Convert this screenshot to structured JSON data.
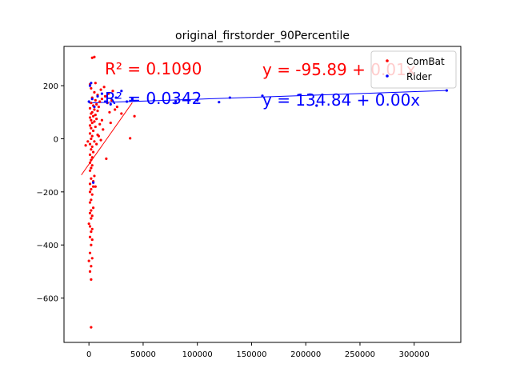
{
  "chart_data": {
    "type": "scatter",
    "title": "original_firstorder_90Percentile",
    "xlabel": "",
    "ylabel": "",
    "xlim": [
      -23000,
      343000
    ],
    "ylim": [
      -767,
      348
    ],
    "x_ticks": [
      0,
      50000,
      100000,
      150000,
      200000,
      250000,
      300000
    ],
    "x_tick_labels": [
      "0",
      "50000",
      "100000",
      "150000",
      "200000",
      "250000",
      "300000"
    ],
    "y_ticks": [
      -600,
      -400,
      -200,
      0,
      200
    ],
    "y_tick_labels": [
      "−600",
      "−400",
      "−200",
      "0",
      "200"
    ],
    "grid": false,
    "legend_position": "top-right",
    "series": [
      {
        "name": "ComBat",
        "color": "#ff0000",
        "points": [
          [
            -3000,
            -25
          ],
          [
            -1000,
            -10
          ],
          [
            2000,
            -710
          ],
          [
            2000,
            -530
          ],
          [
            1000,
            -500
          ],
          [
            2000,
            -480
          ],
          [
            0,
            -460
          ],
          [
            3000,
            -450
          ],
          [
            1000,
            -430
          ],
          [
            2000,
            -400
          ],
          [
            3000,
            -380
          ],
          [
            1000,
            -370
          ],
          [
            2000,
            -350
          ],
          [
            3000,
            -340
          ],
          [
            1000,
            -330
          ],
          [
            0,
            -320
          ],
          [
            2000,
            -300
          ],
          [
            3000,
            -290
          ],
          [
            1000,
            -280
          ],
          [
            2000,
            -270
          ],
          [
            4000,
            -260
          ],
          [
            1000,
            -240
          ],
          [
            2000,
            -230
          ],
          [
            3000,
            -210
          ],
          [
            1000,
            -200
          ],
          [
            2000,
            -190
          ],
          [
            4000,
            -180
          ],
          [
            1000,
            -170
          ],
          [
            2000,
            -150
          ],
          [
            5000,
            -140
          ],
          [
            1000,
            -120
          ],
          [
            2000,
            -110
          ],
          [
            3000,
            -100
          ],
          [
            1000,
            -90
          ],
          [
            2000,
            -80
          ],
          [
            3000,
            -70
          ],
          [
            1000,
            -60
          ],
          [
            4000,
            -50
          ],
          [
            2000,
            -40
          ],
          [
            3000,
            -30
          ],
          [
            1000,
            -20
          ],
          [
            5000,
            -10
          ],
          [
            2000,
            0
          ],
          [
            3000,
            10
          ],
          [
            1000,
            20
          ],
          [
            4000,
            30
          ],
          [
            2000,
            40
          ],
          [
            6000,
            45
          ],
          [
            1000,
            50
          ],
          [
            3000,
            60
          ],
          [
            5000,
            65
          ],
          [
            2000,
            70
          ],
          [
            7000,
            75
          ],
          [
            1000,
            80
          ],
          [
            4000,
            85
          ],
          [
            6000,
            90
          ],
          [
            2000,
            95
          ],
          [
            3000,
            100
          ],
          [
            8000,
            105
          ],
          [
            5000,
            110
          ],
          [
            1000,
            115
          ],
          [
            9000,
            120
          ],
          [
            4000,
            125
          ],
          [
            7000,
            130
          ],
          [
            2000,
            135
          ],
          [
            10000,
            140
          ],
          [
            6000,
            145
          ],
          [
            12000,
            150
          ],
          [
            3000,
            155
          ],
          [
            15000,
            160
          ],
          [
            8000,
            165
          ],
          [
            18000,
            170
          ],
          [
            5000,
            175
          ],
          [
            22000,
            180
          ],
          [
            11000,
            185
          ],
          [
            2000,
            190
          ],
          [
            14000,
            195
          ],
          [
            1000,
            205
          ],
          [
            6000,
            210
          ],
          [
            3000,
            305
          ],
          [
            5000,
            308
          ],
          [
            16000,
            -75
          ],
          [
            38000,
            2
          ],
          [
            42000,
            85
          ],
          [
            26000,
            120
          ],
          [
            30000,
            95
          ],
          [
            20000,
            60
          ],
          [
            24000,
            110
          ],
          [
            9000,
            10
          ],
          [
            13000,
            35
          ],
          [
            17000,
            135
          ],
          [
            21000,
            145
          ],
          [
            7000,
            -20
          ],
          [
            11000,
            -5
          ],
          [
            4000,
            -160
          ],
          [
            6000,
            -180
          ],
          [
            8000,
            15
          ],
          [
            12000,
            70
          ],
          [
            10000,
            55
          ],
          [
            19000,
            100
          ]
        ]
      },
      {
        "name": "Rider",
        "color": "#0000ff",
        "points": [
          [
            0,
            140
          ],
          [
            1000,
            200
          ],
          [
            2000,
            210
          ],
          [
            3000,
            150
          ],
          [
            5000,
            120
          ],
          [
            8000,
            160
          ],
          [
            12000,
            170
          ],
          [
            15000,
            140
          ],
          [
            20000,
            130
          ],
          [
            25000,
            155
          ],
          [
            30000,
            180
          ],
          [
            35000,
            140
          ],
          [
            40000,
            150
          ],
          [
            60000,
            145
          ],
          [
            80000,
            140
          ],
          [
            100000,
            145
          ],
          [
            120000,
            138
          ],
          [
            130000,
            155
          ],
          [
            160000,
            162
          ],
          [
            210000,
            125
          ],
          [
            330000,
            182
          ],
          [
            4000,
            -165
          ]
        ]
      }
    ],
    "fits": [
      {
        "series": "ComBat",
        "color": "#ff0000",
        "intercept": -95.89,
        "slope": 0.0058,
        "x_range": [
          -7000,
          40000
        ],
        "r2_label": "R² = 0.1090",
        "eq_label": "y = -95.89 + 0.01x"
      },
      {
        "series": "Rider",
        "color": "#0000ff",
        "intercept": 134.84,
        "slope": 0.000142,
        "x_range": [
          0,
          330000
        ],
        "r2_label": "R² = 0.0342",
        "eq_label": "y = 134.84 + 0.00x"
      }
    ]
  }
}
